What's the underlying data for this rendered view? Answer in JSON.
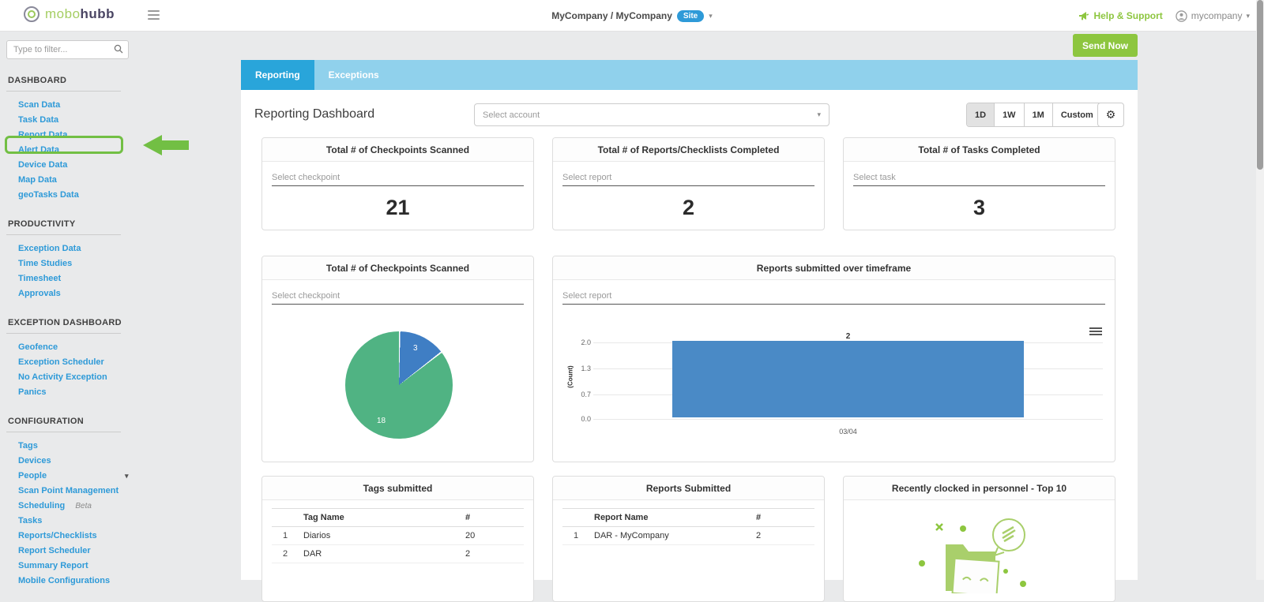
{
  "header": {
    "logo_mobo": "mobo",
    "logo_hubb": "hubb",
    "context_label": "MyCompany / MyCompany",
    "context_badge": "Site",
    "help_label": "Help & Support",
    "user_label": "mycompany"
  },
  "sidebar": {
    "search_placeholder": "Type to filter...",
    "sections": [
      {
        "title": "DASHBOARD",
        "items": [
          {
            "label": "Scan Data"
          },
          {
            "label": "Task Data"
          },
          {
            "label": "Report Data"
          },
          {
            "label": "Alert Data"
          },
          {
            "label": "Device Data"
          },
          {
            "label": "Map Data"
          },
          {
            "label": "geoTasks Data"
          }
        ]
      },
      {
        "title": "PRODUCTIVITY",
        "items": [
          {
            "label": "Exception Data"
          },
          {
            "label": "Time Studies"
          },
          {
            "label": "Timesheet"
          },
          {
            "label": "Approvals"
          }
        ]
      },
      {
        "title": "EXCEPTION DASHBOARD",
        "items": [
          {
            "label": "Geofence"
          },
          {
            "label": "Exception Scheduler"
          },
          {
            "label": "No Activity Exception"
          },
          {
            "label": "Panics"
          }
        ]
      },
      {
        "title": "CONFIGURATION",
        "items": [
          {
            "label": "Tags"
          },
          {
            "label": "Devices"
          },
          {
            "label": "People"
          },
          {
            "label": "Scan Point Management"
          },
          {
            "label": "Scheduling",
            "beta": "Beta"
          },
          {
            "label": "Tasks"
          },
          {
            "label": "Reports/Checklists"
          },
          {
            "label": "Report Scheduler"
          },
          {
            "label": "Summary Report"
          },
          {
            "label": "Mobile Configurations"
          }
        ]
      }
    ]
  },
  "toolbar": {
    "send_now_label": "Send Now"
  },
  "tabs": [
    {
      "label": "Reporting"
    },
    {
      "label": "Exceptions"
    }
  ],
  "page": {
    "title": "Reporting Dashboard",
    "account_placeholder": "Select account",
    "range_buttons": [
      "1D",
      "1W",
      "1M",
      "Custom"
    ],
    "active_range": "1D"
  },
  "stat_cards": [
    {
      "title": "Total # of Checkpoints Scanned",
      "placeholder": "Select checkpoint",
      "value": "21"
    },
    {
      "title": "Total # of Reports/Checklists Completed",
      "placeholder": "Select report",
      "value": "2"
    },
    {
      "title": "Total # of Tasks Completed",
      "placeholder": "Select task",
      "value": "3"
    }
  ],
  "chart_data": [
    {
      "type": "pie",
      "title": "Total # of Checkpoints Scanned",
      "filter_placeholder": "Select checkpoint",
      "slices": [
        {
          "value": 3,
          "color": "#3f7ec4"
        },
        {
          "value": 18,
          "color": "#50b383"
        }
      ],
      "start_angle_deg": 0,
      "legend_position": "none"
    },
    {
      "type": "bar",
      "title": "Reports submitted over timeframe",
      "filter_placeholder": "Select report",
      "categories": [
        "03/04"
      ],
      "values": [
        2
      ],
      "ylabel": "(Count)",
      "yticks": [
        "2.0",
        "1.3",
        "0.7",
        "0.0"
      ],
      "ylim": [
        0,
        2
      ],
      "bar_color": "#4a8ac6",
      "grid": true
    }
  ],
  "tables": [
    {
      "title": "Tags submitted",
      "columns": [
        "Tag Name",
        "#"
      ],
      "rows": [
        [
          "1",
          "Diarios",
          "20"
        ],
        [
          "2",
          "DAR",
          "2"
        ]
      ]
    },
    {
      "title": "Reports Submitted",
      "columns": [
        "Report Name",
        "#"
      ],
      "rows": [
        [
          "1",
          "DAR - MyCompany",
          "2"
        ]
      ]
    }
  ],
  "personnel_card": {
    "title": "Recently clocked in personnel - Top 10"
  },
  "colors": {
    "accent_green": "#8dc63f",
    "annotation_green": "#72bf44",
    "link_blue": "#2e9ad8",
    "tab_bar": "#90d1ec",
    "tab_active": "#29a5da",
    "pie_blue": "#3f7ec4",
    "pie_green": "#50b383",
    "bar_blue": "#4a8ac6"
  }
}
